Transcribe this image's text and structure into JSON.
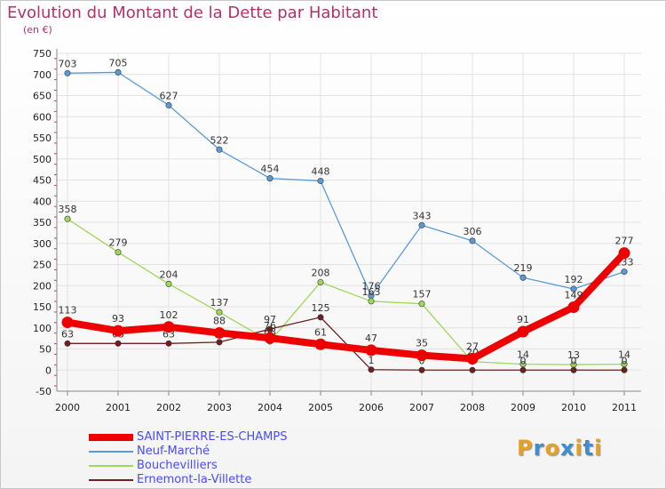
{
  "title": "Evolution du Montant de la Dette par Habitant",
  "subtitle": "(en €)",
  "logo": {
    "text": "Proxiti",
    "colors": [
      "#e8a020",
      "#3a8fd0",
      "#e8a020",
      "#3a8fd0",
      "#e8a020",
      "#3a8fd0",
      "#e8a020"
    ]
  },
  "chart_data": {
    "type": "line",
    "title": "Evolution du Montant de la Dette par Habitant",
    "ylabel": "(en €)",
    "xlabel": "",
    "x": [
      "2000",
      "2001",
      "2002",
      "2003",
      "2004",
      "2005",
      "2006",
      "2007",
      "2008",
      "2009",
      "2010",
      "2011"
    ],
    "ylim": [
      -50,
      750
    ],
    "yticks": [
      -50,
      0,
      50,
      100,
      150,
      200,
      250,
      300,
      350,
      400,
      450,
      500,
      550,
      600,
      650,
      700,
      750
    ],
    "grid": true,
    "legend": "bottom-left",
    "series": [
      {
        "name": "SAINT-PIERRE-ES-CHAMPS",
        "color": "#ee0000",
        "width": 8,
        "values": [
          113,
          93,
          102,
          88,
          76,
          61,
          47,
          35,
          27,
          91,
          149,
          277
        ]
      },
      {
        "name": "Neuf-Marché",
        "color": "#5b9bd5",
        "width": 1.3,
        "values": [
          703,
          705,
          627,
          522,
          454,
          448,
          176,
          343,
          306,
          219,
          192,
          233
        ]
      },
      {
        "name": "Bouchevilliers",
        "color": "#9dd85a",
        "width": 1.3,
        "values": [
          358,
          279,
          204,
          137,
          68,
          208,
          163,
          157,
          20,
          14,
          13,
          14
        ]
      },
      {
        "name": "Ernemont-la-Villette",
        "color": "#6e1f1f",
        "width": 1.3,
        "values": [
          63,
          63,
          63,
          66,
          97,
          125,
          1,
          0,
          0,
          0,
          0,
          0
        ]
      }
    ]
  }
}
